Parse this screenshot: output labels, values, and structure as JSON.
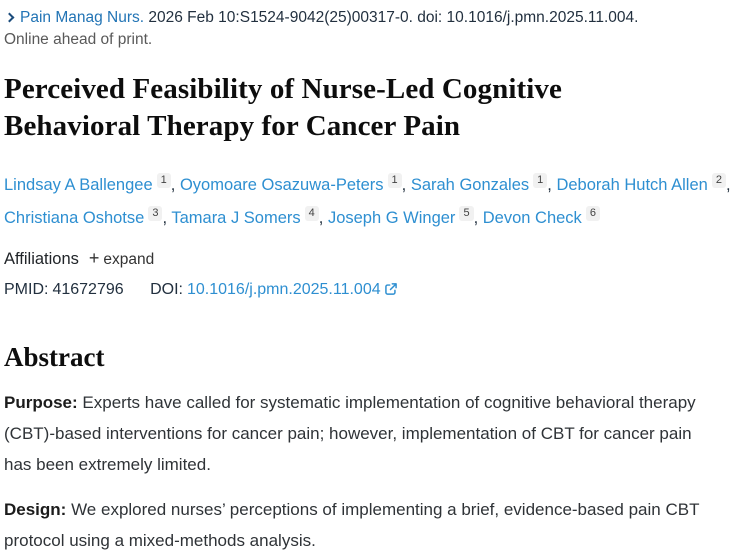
{
  "header": {
    "journal": "Pain Manag Nurs.",
    "citation": "2026 Feb 10:S1524-9042(25)00317-0. doi: 10.1016/j.pmn.2025.11.004.",
    "online_ahead": "Online ahead of print."
  },
  "title": "Perceived Feasibility of Nurse-Led Cognitive Behavioral Therapy for Cancer Pain",
  "authors": [
    {
      "name": "Lindsay A Ballengee",
      "sup": "1"
    },
    {
      "name": "Oyomoare Osazuwa-Peters",
      "sup": "1"
    },
    {
      "name": "Sarah Gonzales",
      "sup": "1"
    },
    {
      "name": "Deborah Hutch Allen",
      "sup": "2"
    },
    {
      "name": "Christiana Oshotse",
      "sup": "3"
    },
    {
      "name": "Tamara J Somers",
      "sup": "4"
    },
    {
      "name": "Joseph G Winger",
      "sup": "5"
    },
    {
      "name": "Devon Check",
      "sup": "6"
    }
  ],
  "affiliations": {
    "label": "Affiliations",
    "plus": "+",
    "expand_label": "expand"
  },
  "ids": {
    "pmid_label": "PMID:",
    "pmid_value": "41672796",
    "doi_label": "DOI:",
    "doi_value": "10.1016/j.pmn.2025.11.004"
  },
  "abstract": {
    "heading": "Abstract",
    "sections": [
      {
        "label": "Purpose:",
        "text": "Experts have called for systematic implementation of cognitive behavioral therapy (CBT)-based interventions for cancer pain; however, implementation of CBT for cancer pain has been extremely limited."
      },
      {
        "label": "Design:",
        "text": "We explored nurses’ perceptions of implementing a brief, evidence-based pain CBT protocol using a mixed-methods analysis."
      }
    ]
  },
  "colors": {
    "journal_link": "#2274b5",
    "author_link": "#2e8fd1",
    "doi_link": "#2e8fd1",
    "chevron": "#1b4c7c",
    "body_text": "#2f3337",
    "muted_text": "#595959",
    "badge_bg": "#f1f1f1"
  }
}
